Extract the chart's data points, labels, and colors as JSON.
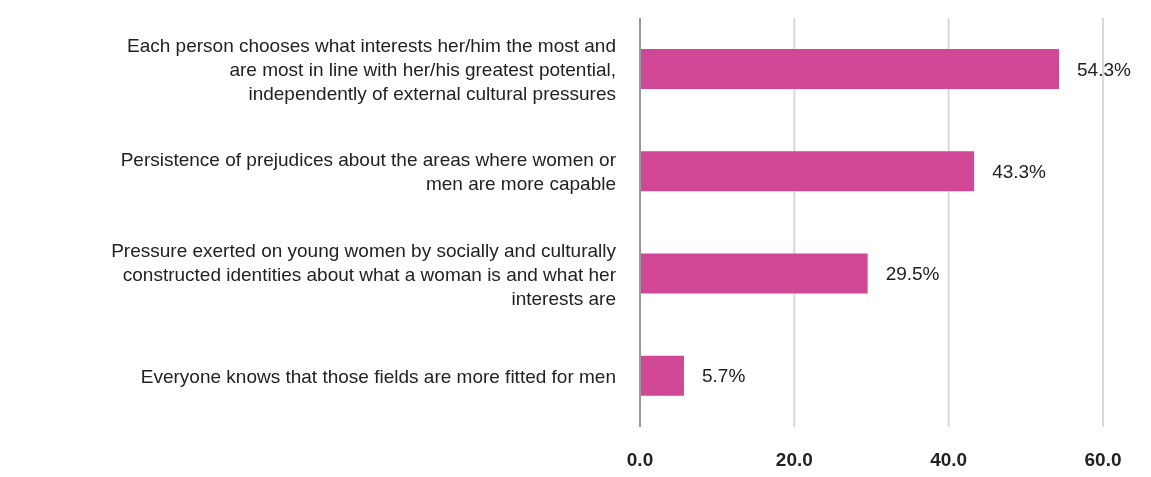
{
  "chart_data": {
    "type": "bar",
    "orientation": "horizontal",
    "categories": [
      "Each person chooses what interests her/him the most and are most in line with her/his greatest potential, independently of external cultural pressures",
      "Persistence of prejudices about the areas where women or men are more capable",
      "Pressure exerted on young women by socially and culturally constructed identities about what a woman is and what her interests are",
      "Everyone knows that those fields are more fitted for men"
    ],
    "values": [
      54.3,
      43.3,
      29.5,
      5.7
    ],
    "value_labels": [
      "54.3%",
      "43.3%",
      "29.5%",
      "5.7%"
    ],
    "color": "#cf4795",
    "xlim": [
      0,
      60
    ],
    "xticks": [
      {
        "value": 0,
        "label": "0.0"
      },
      {
        "value": 20,
        "label": "20.0"
      },
      {
        "value": 40,
        "label": "40.0"
      },
      {
        "value": 60,
        "label": "60.0"
      }
    ],
    "grid": "x",
    "legend": false
  }
}
